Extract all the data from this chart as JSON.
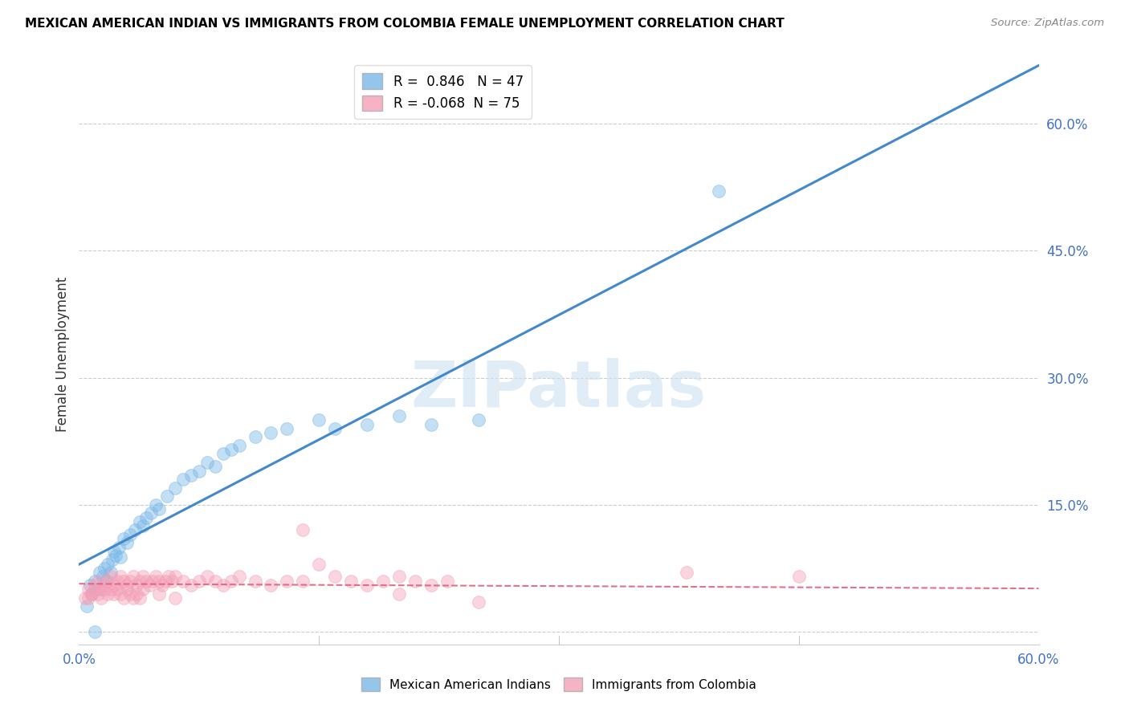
{
  "title": "MEXICAN AMERICAN INDIAN VS IMMIGRANTS FROM COLOMBIA FEMALE UNEMPLOYMENT CORRELATION CHART",
  "source": "Source: ZipAtlas.com",
  "ylabel": "Female Unemployment",
  "right_yticklabels": [
    "",
    "15.0%",
    "30.0%",
    "45.0%",
    "60.0%"
  ],
  "right_yticks": [
    0.0,
    0.15,
    0.3,
    0.45,
    0.6
  ],
  "xmin": 0.0,
  "xmax": 0.6,
  "ymin": -0.015,
  "ymax": 0.67,
  "blue_R": 0.846,
  "blue_N": 47,
  "pink_R": -0.068,
  "pink_N": 75,
  "blue_color": "#7ab8e8",
  "pink_color": "#f4a0b8",
  "blue_line_color": "#4488cc",
  "pink_line_color": "#e06080",
  "watermark": "ZIPatlas",
  "legend_label_blue": "Mexican American Indians",
  "legend_label_pink": "Immigrants from Colombia",
  "blue_scatter_x": [
    0.005,
    0.007,
    0.008,
    0.01,
    0.012,
    0.013,
    0.015,
    0.016,
    0.017,
    0.018,
    0.02,
    0.021,
    0.022,
    0.023,
    0.025,
    0.026,
    0.028,
    0.03,
    0.032,
    0.035,
    0.038,
    0.04,
    0.042,
    0.045,
    0.048,
    0.05,
    0.055,
    0.06,
    0.065,
    0.07,
    0.075,
    0.08,
    0.085,
    0.09,
    0.095,
    0.1,
    0.11,
    0.12,
    0.13,
    0.15,
    0.16,
    0.18,
    0.2,
    0.22,
    0.25,
    0.4,
    0.01
  ],
  "blue_scatter_y": [
    0.03,
    0.055,
    0.045,
    0.06,
    0.05,
    0.07,
    0.065,
    0.075,
    0.06,
    0.08,
    0.07,
    0.085,
    0.095,
    0.09,
    0.1,
    0.088,
    0.11,
    0.105,
    0.115,
    0.12,
    0.13,
    0.125,
    0.135,
    0.14,
    0.15,
    0.145,
    0.16,
    0.17,
    0.18,
    0.185,
    0.19,
    0.2,
    0.195,
    0.21,
    0.215,
    0.22,
    0.23,
    0.235,
    0.24,
    0.25,
    0.24,
    0.245,
    0.255,
    0.245,
    0.25,
    0.52,
    0.0
  ],
  "pink_scatter_x": [
    0.004,
    0.006,
    0.008,
    0.01,
    0.012,
    0.014,
    0.016,
    0.018,
    0.02,
    0.022,
    0.024,
    0.026,
    0.028,
    0.03,
    0.032,
    0.034,
    0.036,
    0.038,
    0.04,
    0.042,
    0.044,
    0.046,
    0.048,
    0.05,
    0.052,
    0.054,
    0.056,
    0.058,
    0.06,
    0.065,
    0.07,
    0.075,
    0.08,
    0.085,
    0.09,
    0.095,
    0.1,
    0.11,
    0.12,
    0.13,
    0.14,
    0.15,
    0.16,
    0.17,
    0.18,
    0.19,
    0.2,
    0.21,
    0.22,
    0.23,
    0.006,
    0.008,
    0.01,
    0.012,
    0.014,
    0.016,
    0.018,
    0.02,
    0.022,
    0.024,
    0.026,
    0.028,
    0.03,
    0.032,
    0.034,
    0.036,
    0.038,
    0.04,
    0.05,
    0.06,
    0.14,
    0.2,
    0.25,
    0.38,
    0.45
  ],
  "pink_scatter_y": [
    0.04,
    0.05,
    0.045,
    0.055,
    0.06,
    0.05,
    0.055,
    0.06,
    0.065,
    0.055,
    0.06,
    0.065,
    0.06,
    0.055,
    0.06,
    0.065,
    0.055,
    0.06,
    0.065,
    0.06,
    0.055,
    0.06,
    0.065,
    0.06,
    0.055,
    0.06,
    0.065,
    0.06,
    0.065,
    0.06,
    0.055,
    0.06,
    0.065,
    0.06,
    0.055,
    0.06,
    0.065,
    0.06,
    0.055,
    0.06,
    0.12,
    0.08,
    0.065,
    0.06,
    0.055,
    0.06,
    0.065,
    0.06,
    0.055,
    0.06,
    0.04,
    0.045,
    0.05,
    0.045,
    0.04,
    0.05,
    0.045,
    0.05,
    0.045,
    0.05,
    0.045,
    0.04,
    0.05,
    0.045,
    0.04,
    0.045,
    0.04,
    0.05,
    0.045,
    0.04,
    0.06,
    0.045,
    0.035,
    0.07,
    0.065
  ]
}
